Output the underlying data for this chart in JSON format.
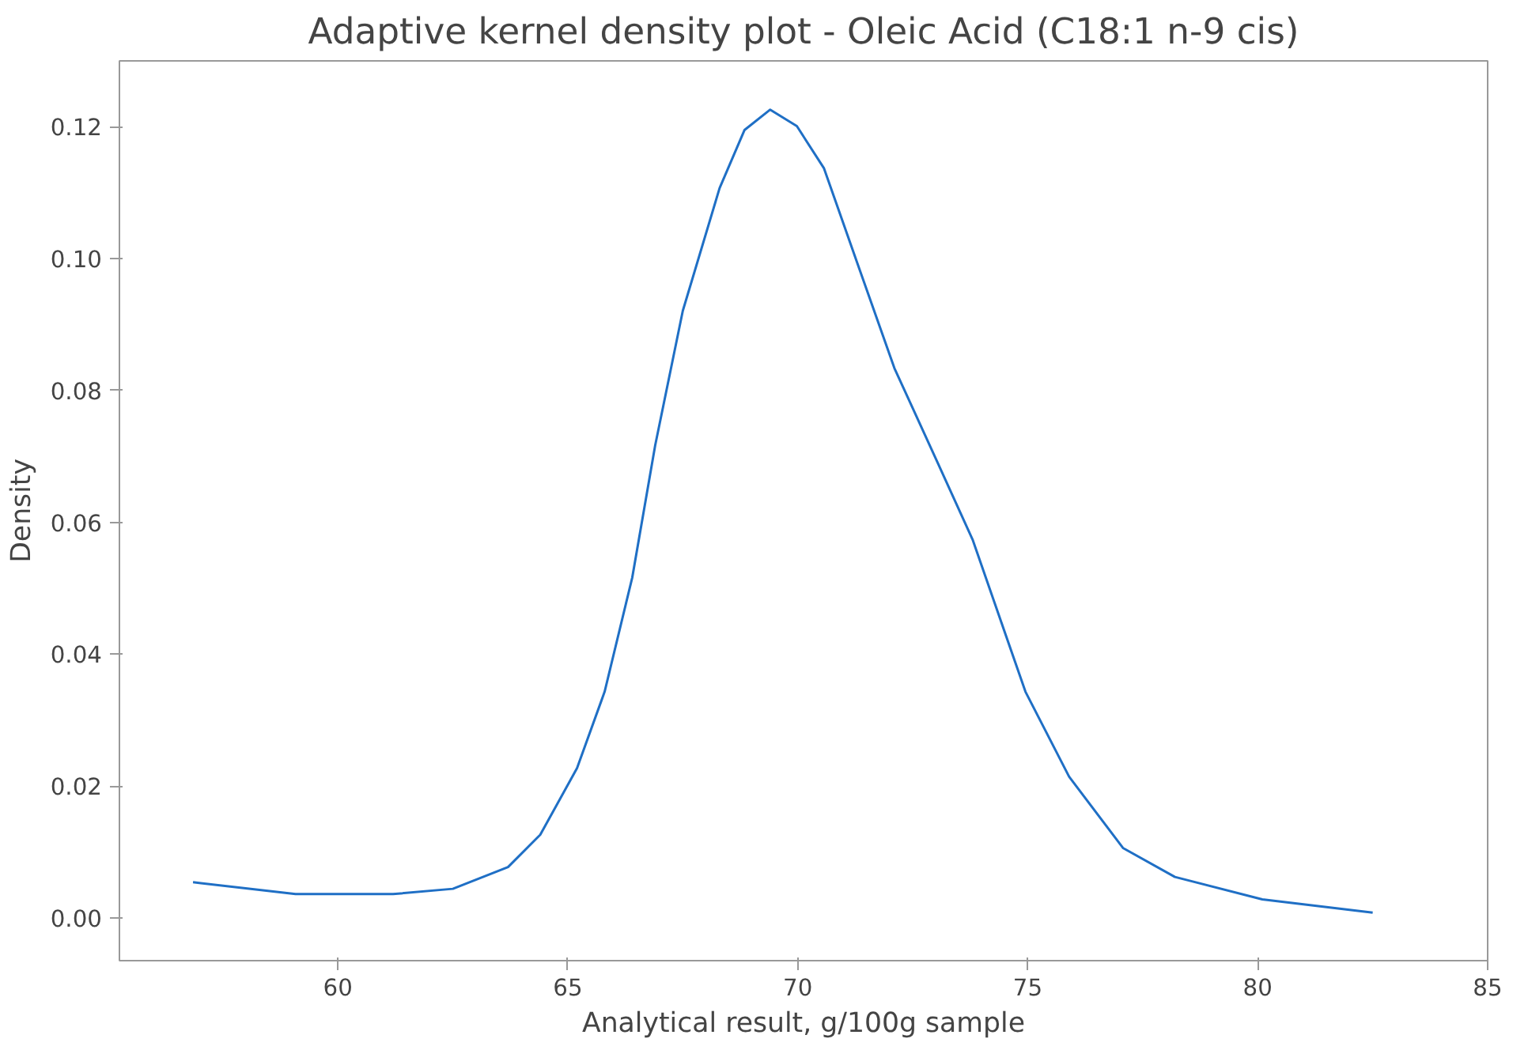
{
  "chart_data": {
    "type": "line",
    "title": "Adaptive kernel density plot - Oleic Acid (C18:1 n-9 cis)",
    "xlabel": "Analytical result, g/100g sample",
    "ylabel": "Density",
    "x": [
      56.85,
      59.08,
      61.2,
      62.5,
      63.7,
      64.4,
      65.2,
      65.8,
      66.4,
      66.9,
      67.5,
      68.3,
      68.84,
      69.4,
      69.98,
      70.57,
      71.3,
      72.1,
      73.05,
      73.8,
      74.95,
      75.9,
      77.07,
      78.2,
      80.1,
      82.5
    ],
    "series": [
      {
        "color": "#1f6fc5",
        "values": [
          0.0054,
          0.0036,
          0.0036,
          0.0044,
          0.0077,
          0.0126,
          0.0227,
          0.0343,
          0.0516,
          0.0717,
          0.0921,
          0.1107,
          0.1195,
          0.1226,
          0.1201,
          0.1137,
          0.0992,
          0.0834,
          0.0689,
          0.0574,
          0.0343,
          0.0214,
          0.0106,
          0.0062,
          0.0028,
          0.0008
        ]
      }
    ],
    "xlim": [
      55.25,
      85
    ],
    "ylim": [
      -0.0065,
      0.13
    ],
    "xticks": [
      60,
      65,
      70,
      75,
      80,
      85
    ],
    "yticks": [
      {
        "value": 0,
        "label": "0.00"
      },
      {
        "value": 0.02,
        "label": "0.02"
      },
      {
        "value": 0.04,
        "label": "0.04"
      },
      {
        "value": 0.06,
        "label": "0.06"
      },
      {
        "value": 0.08,
        "label": "0.08"
      },
      {
        "value": 0.1,
        "label": "0.10"
      },
      {
        "value": 0.12,
        "label": "0.12"
      }
    ],
    "grid": false,
    "marker": "none",
    "line_style": "solid"
  }
}
